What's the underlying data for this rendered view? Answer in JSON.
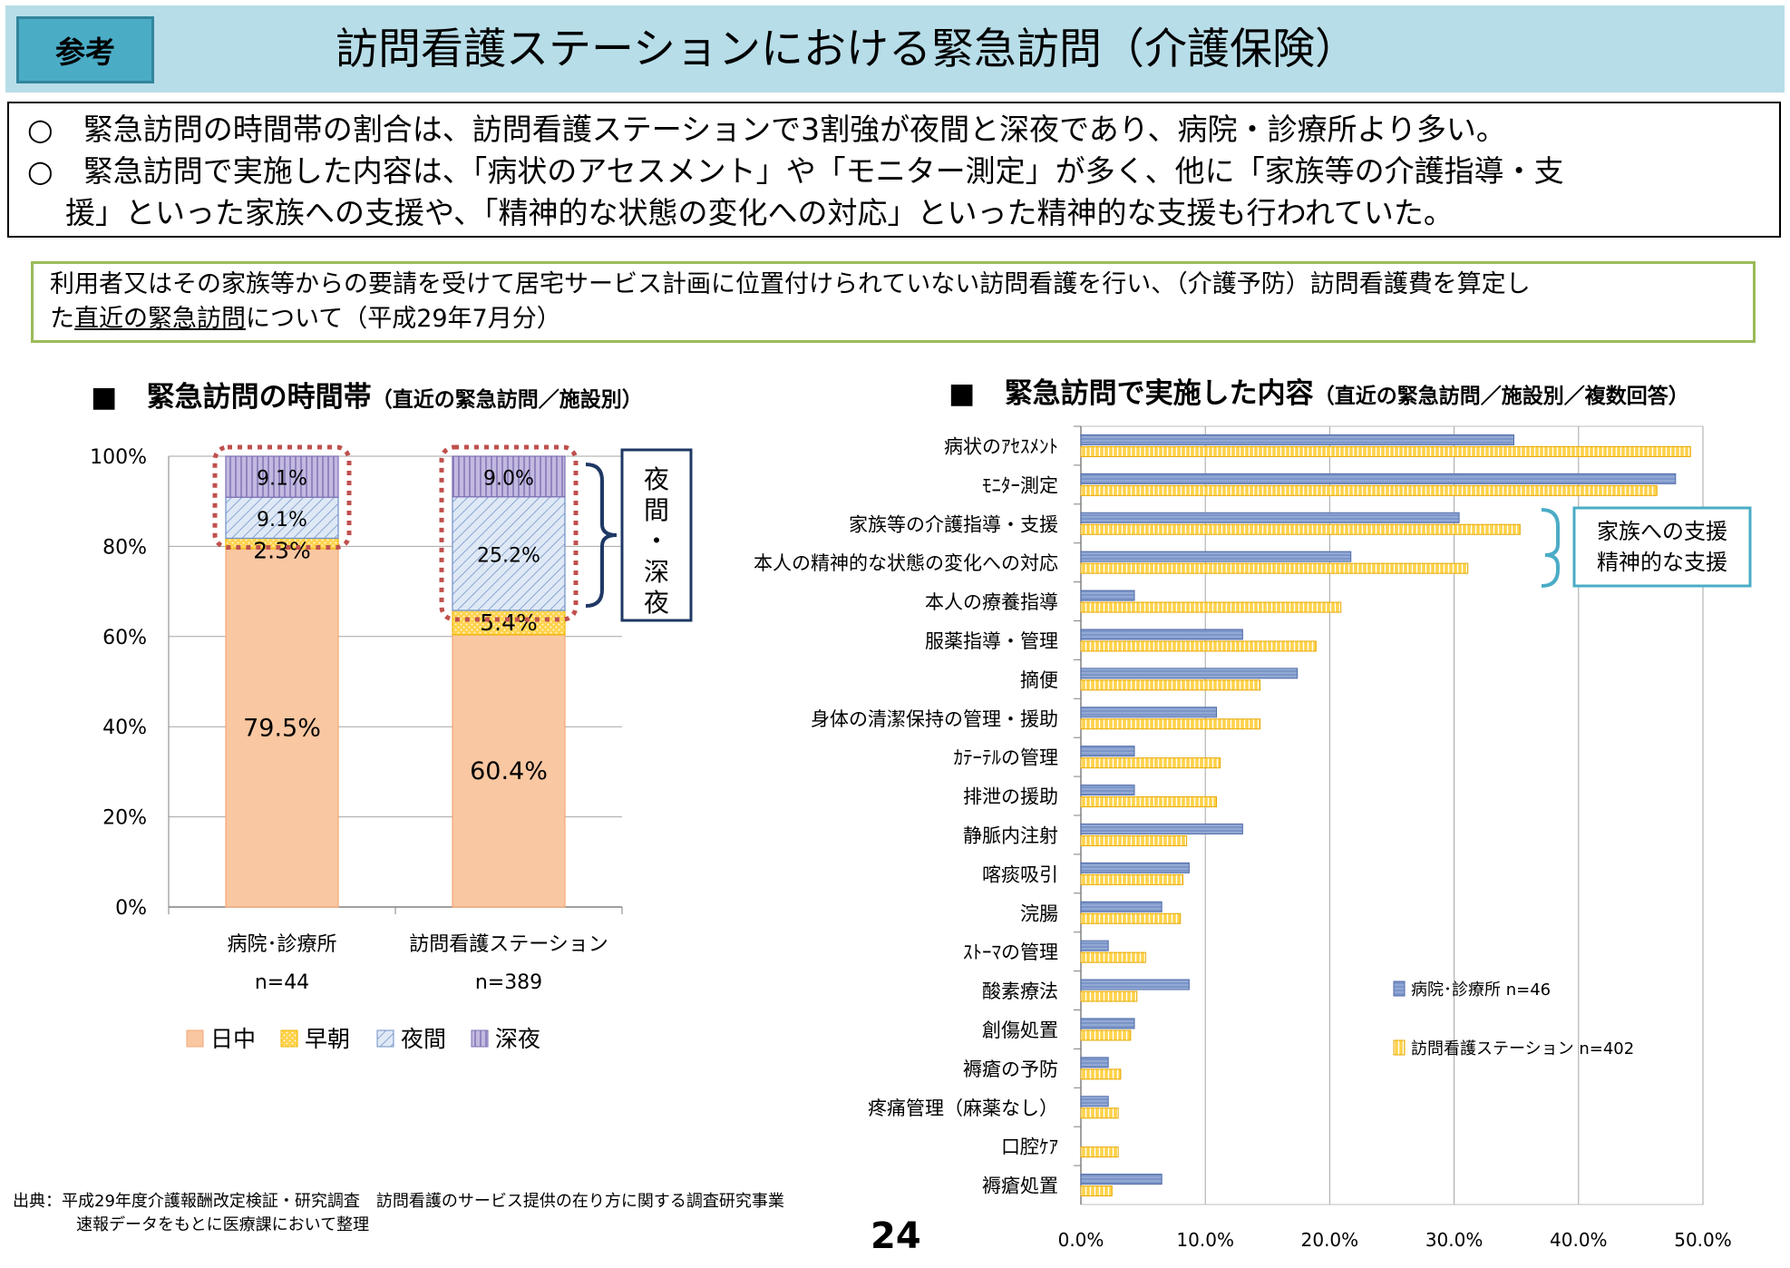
{
  "header": {
    "tag": "参考",
    "title": "訪問看護ステーションにおける緊急訪問（介護保険）"
  },
  "summary": {
    "line1": "○　緊急訪問の時間帯の割合は、訪問看護ステーションで3割強が夜間と深夜であり、病院・診療所より多い。",
    "line2": "○　緊急訪問で実施した内容は、「病状のアセスメント」や「モニター測定」が多く、他に「家族等の介護指導・支",
    "line3": "援」といった家族への支援や、「精神的な状態の変化への対応」といった精神的な支援も行われていた。"
  },
  "scope": {
    "line1": "利用者又はその家族等からの要請を受けて居宅サービス計画に位置付けられていない訪問看護を行い、（介護予防）訪問看護費を算定し",
    "line2_a": "た",
    "line2_u": "直近の緊急訪問",
    "line2_b": "について（平成29年7月分）"
  },
  "left_section": {
    "mark": "■",
    "title": "緊急訪問の時間帯",
    "sub": "（直近の緊急訪問／施設別）"
  },
  "right_section": {
    "mark": "■",
    "title": "緊急訪問で実施した内容",
    "sub": "（直近の緊急訪問／施設別／複数回答）"
  },
  "annotations": {
    "night_label": [
      "夜",
      "間",
      "・",
      "深",
      "夜"
    ],
    "family_label_1": "家族への支援",
    "family_label_2": "精神的な支援"
  },
  "colors": {
    "header_bg": "#b7dde8",
    "tag_bg": "#4bacc6",
    "day": "#f9c7a1",
    "early": "#ffd24a",
    "night": "#c9daf0",
    "midnight": "#a79ccf",
    "hospital_bar": "#7b95c8",
    "station_bar": "#ffd24a",
    "dotted_box": "#c0504d",
    "night_box": "#1f3864",
    "family_box": "#4bacc6"
  },
  "chart_data": [
    {
      "type": "bar",
      "stacked": true,
      "categories": [
        "病院･診療所",
        "訪問看護ステーション"
      ],
      "n_labels": [
        "n=44",
        "n=389"
      ],
      "series": [
        {
          "name": "日中",
          "values": [
            79.5,
            60.4
          ],
          "labels": [
            "79.5%",
            "60.4%"
          ]
        },
        {
          "name": "早朝",
          "values": [
            2.3,
            5.4
          ],
          "labels": [
            "2.3%",
            "5.4%"
          ]
        },
        {
          "name": "夜間",
          "values": [
            9.1,
            25.2
          ],
          "labels": [
            "9.1%",
            "25.2%"
          ]
        },
        {
          "name": "深夜",
          "values": [
            9.1,
            9.0
          ],
          "labels": [
            "9.1%",
            "9.0%"
          ]
        }
      ],
      "yticks": [
        "0%",
        "20%",
        "40%",
        "60%",
        "80%",
        "100%"
      ],
      "ylim": [
        0,
        100
      ],
      "legend_position": "bottom"
    },
    {
      "type": "bar",
      "orientation": "horizontal",
      "categories": [
        "病状のｱｾｽﾒﾝﾄ",
        "ﾓﾆﾀｰ測定",
        "家族等の介護指導・支援",
        "本人の精神的な状態の変化への対応",
        "本人の療養指導",
        "服薬指導・管理",
        "摘便",
        "身体の清潔保持の管理・援助",
        "ｶﾃｰﾃﾙの管理",
        "排泄の援助",
        "静脈内注射",
        "喀痰吸引",
        "浣腸",
        "ｽﾄｰﾏの管理",
        "酸素療法",
        "創傷処置",
        "褥瘡の予防",
        "疼痛管理（麻薬なし）",
        "口腔ｹｱ",
        "褥瘡処置"
      ],
      "series": [
        {
          "name": "病院･診療所 n=46",
          "values": [
            34.8,
            47.8,
            30.4,
            21.7,
            4.3,
            13.0,
            17.4,
            10.9,
            4.3,
            4.3,
            13.0,
            8.7,
            6.5,
            2.2,
            8.7,
            4.3,
            2.2,
            2.2,
            0.0,
            6.5
          ]
        },
        {
          "name": "訪問看護ステーション n=402",
          "values": [
            49.0,
            46.3,
            35.3,
            31.1,
            20.9,
            18.9,
            14.4,
            14.4,
            11.2,
            10.9,
            8.5,
            8.2,
            8.0,
            5.2,
            4.5,
            4.0,
            3.2,
            3.0,
            3.0,
            2.5
          ]
        }
      ],
      "xticks": [
        "0.0%",
        "10.0%",
        "20.0%",
        "30.0%",
        "40.0%",
        "50.0%"
      ],
      "xlim": [
        0,
        50
      ],
      "grid": true,
      "legend_position": "right"
    }
  ],
  "source": {
    "line1": "出典：平成29年度介護報酬改定検証・研究調査　訪問看護のサービス提供の在り方に関する調査研究事業",
    "line2": "速報データをもとに医療課において整理"
  },
  "page_number": "24"
}
